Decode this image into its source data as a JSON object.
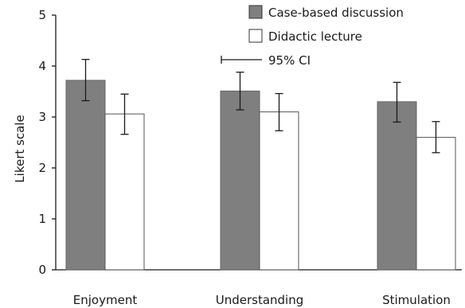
{
  "chart_data": {
    "type": "bar",
    "title": "",
    "xlabel": "",
    "ylabel": "Likert scale",
    "ylim": [
      0,
      5
    ],
    "yticks": [
      "0",
      "1",
      "2",
      "3",
      "4",
      "5"
    ],
    "categories": [
      "Enjoyment",
      "Understanding",
      "Stimulation"
    ],
    "series": [
      {
        "name": "Case-based discussion",
        "color": "#7f7f7f",
        "values": [
          3.72,
          3.51,
          3.3
        ],
        "ci_low": [
          3.32,
          3.14,
          2.9
        ],
        "ci_high": [
          4.13,
          3.88,
          3.68
        ]
      },
      {
        "name": "Didactic lecture",
        "color": "#ffffff",
        "values": [
          3.06,
          3.1,
          2.6
        ],
        "ci_low": [
          2.66,
          2.73,
          2.3
        ],
        "ci_high": [
          3.45,
          3.46,
          2.91
        ]
      }
    ],
    "ci_legend_label": "95% CI",
    "grid": false,
    "legend_position": "top-right"
  }
}
